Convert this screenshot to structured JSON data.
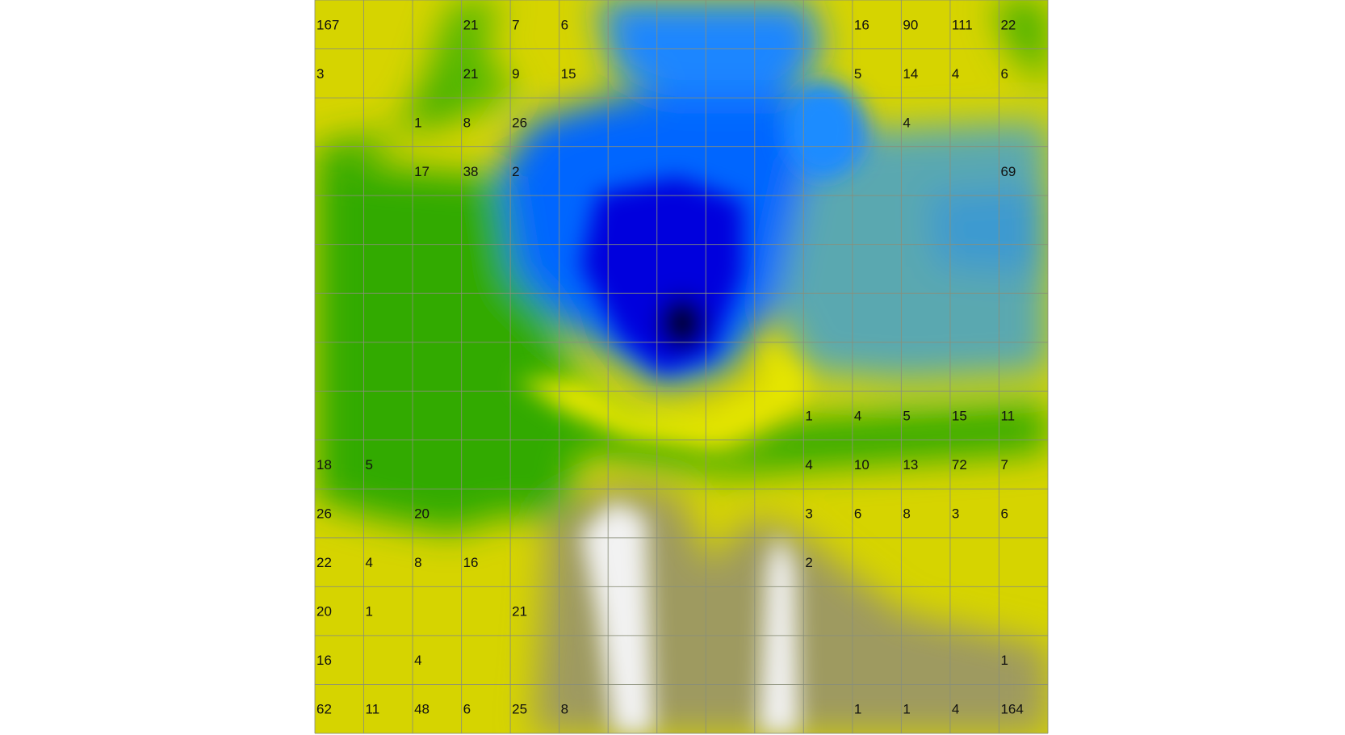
{
  "chart_data": {
    "type": "heatmap",
    "rows": 15,
    "cols": 15,
    "title": "",
    "xlabel": "",
    "ylabel": "",
    "colormap": [
      "#000000",
      "#0000cc",
      "#0066ff",
      "#33a0d0",
      "#e8e800",
      "#33aa00",
      "#dddd00",
      "#909060",
      "#ffffff"
    ],
    "labels": [
      [
        "167",
        "",
        "",
        "21",
        "7",
        "6",
        "",
        "",
        "",
        "",
        "",
        "16",
        "90",
        "111",
        "22"
      ],
      [
        "3",
        "",
        "",
        "21",
        "9",
        "15",
        "",
        "",
        "",
        "",
        "",
        "5",
        "14",
        "4",
        "6"
      ],
      [
        "",
        "",
        "1",
        "8",
        "26",
        "",
        "",
        "",
        "",
        "",
        "",
        "",
        "4",
        "",
        ""
      ],
      [
        "",
        "",
        "17",
        "38",
        "2",
        "",
        "",
        "",
        "",
        "",
        "",
        "",
        "",
        "",
        "69"
      ],
      [
        "",
        "",
        "",
        "",
        "",
        "",
        "",
        "",
        "",
        "",
        "",
        "",
        "",
        "",
        ""
      ],
      [
        "",
        "",
        "",
        "",
        "",
        "",
        "",
        "",
        "",
        "",
        "",
        "",
        "",
        "",
        ""
      ],
      [
        "",
        "",
        "",
        "",
        "",
        "",
        "",
        "",
        "",
        "",
        "",
        "",
        "",
        "",
        ""
      ],
      [
        "",
        "",
        "",
        "",
        "",
        "",
        "",
        "",
        "",
        "",
        "",
        "",
        "",
        "",
        ""
      ],
      [
        "",
        "",
        "",
        "",
        "",
        "",
        "",
        "",
        "",
        "",
        "1",
        "4",
        "5",
        "15",
        "11"
      ],
      [
        "18",
        "5",
        "",
        "",
        "",
        "",
        "",
        "",
        "",
        "",
        "4",
        "10",
        "13",
        "72",
        "7"
      ],
      [
        "26",
        "",
        "20",
        "",
        "",
        "",
        "",
        "",
        "",
        "",
        "3",
        "6",
        "8",
        "3",
        "6"
      ],
      [
        "22",
        "4",
        "8",
        "16",
        "",
        "",
        "",
        "",
        "",
        "",
        "2",
        "",
        "",
        "",
        ""
      ],
      [
        "20",
        "1",
        "",
        "",
        "21",
        "",
        "",
        "",
        "",
        "",
        "",
        "",
        "",
        "",
        ""
      ],
      [
        "16",
        "",
        "4",
        "",
        "",
        "",
        "",
        "",
        "",
        "",
        "",
        "",
        "",
        "",
        "1"
      ],
      [
        "62",
        "11",
        "48",
        "6",
        "25",
        "8",
        "",
        "",
        "",
        "",
        "",
        "1",
        "1",
        "4",
        "164"
      ]
    ]
  }
}
